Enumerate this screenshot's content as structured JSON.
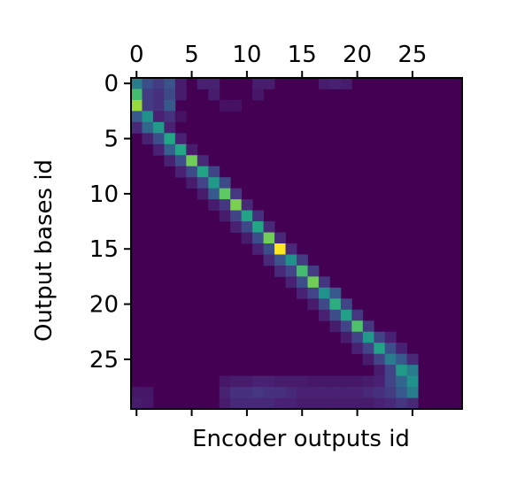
{
  "chart_data": {
    "type": "heatmap",
    "title": "",
    "xlabel": "Encoder outputs id",
    "ylabel": "Output bases id",
    "x_ticks": [
      0,
      5,
      10,
      15,
      20,
      25
    ],
    "y_ticks": [
      0,
      5,
      10,
      15,
      20,
      25
    ],
    "x_range": [
      -0.5,
      29.5
    ],
    "y_range": [
      -0.5,
      29.5
    ],
    "x_tick_position": "top",
    "y_origin": "top",
    "colormap": "viridis",
    "value_range": [
      0,
      1
    ],
    "rows": [
      {
        "row": 0,
        "cells": [
          [
            0,
            0.45
          ],
          [
            1,
            0.3
          ],
          [
            2,
            0.22
          ],
          [
            3,
            0.32
          ],
          [
            4,
            0.1
          ],
          [
            6,
            0.12
          ],
          [
            7,
            0.12
          ],
          [
            11,
            0.1
          ],
          [
            12,
            0.1
          ],
          [
            17,
            0.1
          ],
          [
            18,
            0.12
          ],
          [
            19,
            0.1
          ]
        ]
      },
      {
        "row": 1,
        "cells": [
          [
            0,
            0.7
          ],
          [
            1,
            0.22
          ],
          [
            2,
            0.18
          ],
          [
            3,
            0.28
          ],
          [
            4,
            0.1
          ],
          [
            7,
            0.1
          ],
          [
            11,
            0.08
          ]
        ]
      },
      {
        "row": 2,
        "cells": [
          [
            0,
            0.85
          ],
          [
            1,
            0.22
          ],
          [
            2,
            0.18
          ],
          [
            3,
            0.35
          ],
          [
            8,
            0.06
          ],
          [
            9,
            0.06
          ]
        ]
      },
      {
        "row": 3,
        "cells": [
          [
            0,
            0.35
          ],
          [
            1,
            0.5
          ],
          [
            2,
            0.12
          ],
          [
            3,
            0.18
          ],
          [
            4,
            0.06
          ]
        ]
      },
      {
        "row": 4,
        "cells": [
          [
            0,
            0.15
          ],
          [
            1,
            0.4
          ],
          [
            2,
            0.55
          ],
          [
            3,
            0.12
          ]
        ]
      },
      {
        "row": 5,
        "cells": [
          [
            1,
            0.12
          ],
          [
            2,
            0.3
          ],
          [
            3,
            0.62
          ],
          [
            4,
            0.12
          ]
        ]
      },
      {
        "row": 6,
        "cells": [
          [
            2,
            0.12
          ],
          [
            3,
            0.38
          ],
          [
            4,
            0.62
          ],
          [
            5,
            0.1
          ]
        ]
      },
      {
        "row": 7,
        "cells": [
          [
            3,
            0.12
          ],
          [
            4,
            0.3
          ],
          [
            5,
            0.78
          ],
          [
            6,
            0.15
          ]
        ]
      },
      {
        "row": 8,
        "cells": [
          [
            4,
            0.12
          ],
          [
            5,
            0.28
          ],
          [
            6,
            0.6
          ],
          [
            7,
            0.25
          ]
        ]
      },
      {
        "row": 9,
        "cells": [
          [
            5,
            0.1
          ],
          [
            6,
            0.25
          ],
          [
            7,
            0.55
          ],
          [
            8,
            0.28
          ]
        ]
      },
      {
        "row": 10,
        "cells": [
          [
            6,
            0.1
          ],
          [
            7,
            0.35
          ],
          [
            8,
            0.75
          ],
          [
            9,
            0.2
          ]
        ]
      },
      {
        "row": 11,
        "cells": [
          [
            7,
            0.1
          ],
          [
            8,
            0.2
          ],
          [
            9,
            0.8
          ],
          [
            10,
            0.15
          ]
        ]
      },
      {
        "row": 12,
        "cells": [
          [
            8,
            0.1
          ],
          [
            9,
            0.25
          ],
          [
            10,
            0.6
          ],
          [
            11,
            0.18
          ]
        ]
      },
      {
        "row": 13,
        "cells": [
          [
            9,
            0.12
          ],
          [
            10,
            0.28
          ],
          [
            11,
            0.62
          ],
          [
            12,
            0.15
          ]
        ]
      },
      {
        "row": 14,
        "cells": [
          [
            10,
            0.1
          ],
          [
            11,
            0.3
          ],
          [
            12,
            0.78
          ],
          [
            13,
            0.15
          ]
        ]
      },
      {
        "row": 15,
        "cells": [
          [
            11,
            0.12
          ],
          [
            12,
            0.3
          ],
          [
            13,
            1.0
          ],
          [
            14,
            0.15
          ]
        ]
      },
      {
        "row": 16,
        "cells": [
          [
            12,
            0.15
          ],
          [
            13,
            0.32
          ],
          [
            14,
            0.5
          ],
          [
            15,
            0.22
          ]
        ]
      },
      {
        "row": 17,
        "cells": [
          [
            13,
            0.15
          ],
          [
            14,
            0.25
          ],
          [
            15,
            0.7
          ],
          [
            16,
            0.22
          ]
        ]
      },
      {
        "row": 18,
        "cells": [
          [
            14,
            0.12
          ],
          [
            15,
            0.3
          ],
          [
            16,
            0.78
          ],
          [
            17,
            0.2
          ]
        ]
      },
      {
        "row": 19,
        "cells": [
          [
            15,
            0.12
          ],
          [
            16,
            0.25
          ],
          [
            17,
            0.5
          ],
          [
            18,
            0.35
          ]
        ]
      },
      {
        "row": 20,
        "cells": [
          [
            16,
            0.1
          ],
          [
            17,
            0.28
          ],
          [
            18,
            0.65
          ],
          [
            19,
            0.25
          ]
        ]
      },
      {
        "row": 21,
        "cells": [
          [
            17,
            0.12
          ],
          [
            18,
            0.3
          ],
          [
            19,
            0.58
          ],
          [
            20,
            0.2
          ]
        ]
      },
      {
        "row": 22,
        "cells": [
          [
            18,
            0.1
          ],
          [
            19,
            0.25
          ],
          [
            20,
            0.72
          ],
          [
            21,
            0.2
          ]
        ]
      },
      {
        "row": 23,
        "cells": [
          [
            19,
            0.1
          ],
          [
            20,
            0.25
          ],
          [
            21,
            0.55
          ],
          [
            22,
            0.25
          ],
          [
            23,
            0.12
          ]
        ]
      },
      {
        "row": 24,
        "cells": [
          [
            20,
            0.12
          ],
          [
            21,
            0.25
          ],
          [
            22,
            0.6
          ],
          [
            23,
            0.3
          ],
          [
            24,
            0.12
          ]
        ]
      },
      {
        "row": 25,
        "cells": [
          [
            21,
            0.1
          ],
          [
            22,
            0.25
          ],
          [
            23,
            0.45
          ],
          [
            24,
            0.35
          ],
          [
            25,
            0.15
          ]
        ]
      },
      {
        "row": 26,
        "cells": [
          [
            22,
            0.1
          ],
          [
            23,
            0.25
          ],
          [
            24,
            0.55
          ],
          [
            25,
            0.45
          ]
        ]
      },
      {
        "row": 27,
        "cells": [
          [
            8,
            0.08
          ],
          [
            9,
            0.1
          ],
          [
            10,
            0.1
          ],
          [
            11,
            0.12
          ],
          [
            12,
            0.12
          ],
          [
            13,
            0.1
          ],
          [
            14,
            0.1
          ],
          [
            15,
            0.1
          ],
          [
            16,
            0.08
          ],
          [
            17,
            0.08
          ],
          [
            18,
            0.08
          ],
          [
            19,
            0.08
          ],
          [
            20,
            0.08
          ],
          [
            21,
            0.1
          ],
          [
            22,
            0.12
          ],
          [
            23,
            0.25
          ],
          [
            24,
            0.4
          ],
          [
            25,
            0.5
          ]
        ]
      },
      {
        "row": 28,
        "cells": [
          [
            0,
            0.08
          ],
          [
            1,
            0.08
          ],
          [
            8,
            0.12
          ],
          [
            9,
            0.18
          ],
          [
            10,
            0.18
          ],
          [
            11,
            0.2
          ],
          [
            12,
            0.18
          ],
          [
            13,
            0.18
          ],
          [
            14,
            0.15
          ],
          [
            15,
            0.12
          ],
          [
            16,
            0.12
          ],
          [
            17,
            0.12
          ],
          [
            18,
            0.12
          ],
          [
            19,
            0.12
          ],
          [
            20,
            0.12
          ],
          [
            21,
            0.15
          ],
          [
            22,
            0.18
          ],
          [
            23,
            0.22
          ],
          [
            24,
            0.35
          ],
          [
            25,
            0.45
          ]
        ]
      },
      {
        "row": 29,
        "cells": [
          [
            0,
            0.1
          ],
          [
            1,
            0.08
          ],
          [
            8,
            0.1
          ],
          [
            9,
            0.15
          ],
          [
            10,
            0.15
          ],
          [
            11,
            0.15
          ],
          [
            12,
            0.15
          ],
          [
            13,
            0.12
          ],
          [
            14,
            0.12
          ],
          [
            15,
            0.1
          ],
          [
            16,
            0.1
          ],
          [
            17,
            0.1
          ],
          [
            18,
            0.1
          ],
          [
            19,
            0.1
          ],
          [
            20,
            0.1
          ],
          [
            21,
            0.1
          ],
          [
            22,
            0.12
          ],
          [
            23,
            0.15
          ],
          [
            24,
            0.2
          ],
          [
            25,
            0.15
          ]
        ]
      }
    ]
  }
}
